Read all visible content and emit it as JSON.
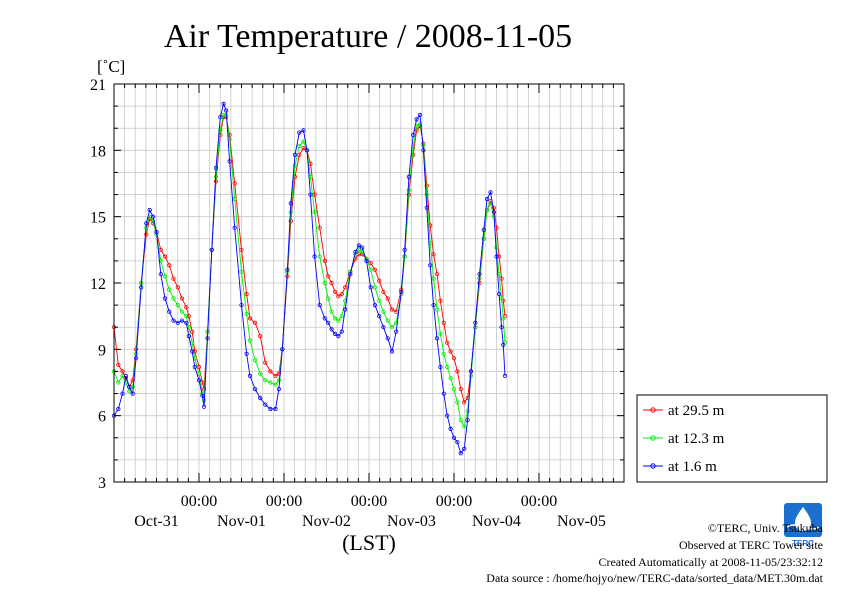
{
  "chart_data": {
    "type": "line",
    "title": "Air Temperature / 2008-11-05",
    "ylabel": "[˚C]",
    "xlabel": "(LST)",
    "ylim": [
      3,
      21
    ],
    "yticks": [
      3,
      6,
      9,
      12,
      15,
      18,
      21
    ],
    "xlim": [
      0,
      6
    ],
    "xtick_time_labels": [
      "00:00",
      "00:00",
      "00:00",
      "00:00",
      "00:00"
    ],
    "xtick_day_labels": [
      "Oct-31",
      "Nov-01",
      "Nov-02",
      "Nov-03",
      "Nov-04",
      "Nov-05"
    ],
    "grid": true,
    "legend_position": "right",
    "series": [
      {
        "name": "at 29.5 m",
        "color": "#ff0000",
        "points": [
          [
            0.0,
            10.0
          ],
          [
            0.05,
            8.3
          ],
          [
            0.1,
            8.0
          ],
          [
            0.14,
            7.7
          ],
          [
            0.18,
            7.3
          ],
          [
            0.22,
            7.6
          ],
          [
            0.26,
            9.0
          ],
          [
            0.32,
            12.0
          ],
          [
            0.38,
            14.2
          ],
          [
            0.42,
            14.9
          ],
          [
            0.46,
            14.7
          ],
          [
            0.5,
            14.3
          ],
          [
            0.55,
            13.5
          ],
          [
            0.6,
            13.2
          ],
          [
            0.65,
            12.8
          ],
          [
            0.7,
            12.2
          ],
          [
            0.75,
            11.8
          ],
          [
            0.8,
            11.3
          ],
          [
            0.85,
            10.9
          ],
          [
            0.88,
            10.5
          ],
          [
            0.92,
            9.8
          ],
          [
            0.95,
            8.9
          ],
          [
            1.0,
            8.2
          ],
          [
            1.04,
            7.5
          ],
          [
            1.06,
            7.2
          ],
          [
            1.1,
            9.8
          ],
          [
            1.15,
            13.5
          ],
          [
            1.2,
            16.6
          ],
          [
            1.25,
            18.7
          ],
          [
            1.29,
            19.5
          ],
          [
            1.32,
            19.5
          ],
          [
            1.36,
            18.7
          ],
          [
            1.42,
            16.5
          ],
          [
            1.5,
            13.5
          ],
          [
            1.56,
            11.5
          ],
          [
            1.6,
            10.4
          ],
          [
            1.66,
            10.2
          ],
          [
            1.72,
            9.6
          ],
          [
            1.78,
            8.4
          ],
          [
            1.84,
            8.0
          ],
          [
            1.9,
            7.8
          ],
          [
            1.94,
            7.9
          ],
          [
            1.98,
            9.0
          ],
          [
            2.04,
            12.3
          ],
          [
            2.08,
            14.8
          ],
          [
            2.13,
            16.8
          ],
          [
            2.18,
            17.8
          ],
          [
            2.23,
            18.1
          ],
          [
            2.27,
            18.0
          ],
          [
            2.31,
            17.4
          ],
          [
            2.36,
            16.0
          ],
          [
            2.42,
            14.5
          ],
          [
            2.48,
            13.0
          ],
          [
            2.52,
            12.3
          ],
          [
            2.56,
            12.0
          ],
          [
            2.6,
            11.6
          ],
          [
            2.64,
            11.4
          ],
          [
            2.68,
            11.5
          ],
          [
            2.72,
            11.8
          ],
          [
            2.78,
            12.5
          ],
          [
            2.84,
            13.1
          ],
          [
            2.88,
            13.3
          ],
          [
            2.92,
            13.3
          ],
          [
            2.97,
            13.1
          ],
          [
            3.02,
            12.9
          ],
          [
            3.07,
            12.6
          ],
          [
            3.12,
            12.1
          ],
          [
            3.17,
            11.6
          ],
          [
            3.22,
            11.3
          ],
          [
            3.27,
            10.8
          ],
          [
            3.32,
            10.7
          ],
          [
            3.38,
            11.7
          ],
          [
            3.42,
            13.2
          ],
          [
            3.47,
            16.0
          ],
          [
            3.52,
            17.8
          ],
          [
            3.56,
            18.9
          ],
          [
            3.6,
            19.1
          ],
          [
            3.64,
            18.3
          ],
          [
            3.68,
            16.4
          ],
          [
            3.72,
            14.6
          ],
          [
            3.76,
            13.3
          ],
          [
            3.8,
            12.4
          ],
          [
            3.84,
            11.2
          ],
          [
            3.88,
            10.2
          ],
          [
            3.92,
            9.3
          ],
          [
            3.96,
            8.9
          ],
          [
            4.0,
            8.6
          ],
          [
            4.04,
            8.0
          ],
          [
            4.08,
            7.2
          ],
          [
            4.12,
            6.6
          ],
          [
            4.16,
            6.8
          ],
          [
            4.2,
            8.0
          ],
          [
            4.25,
            10.0
          ],
          [
            4.3,
            12.0
          ],
          [
            4.35,
            14.0
          ],
          [
            4.39,
            15.3
          ],
          [
            4.43,
            15.7
          ],
          [
            4.47,
            15.4
          ],
          [
            4.5,
            14.5
          ],
          [
            4.53,
            13.2
          ],
          [
            4.56,
            12.2
          ],
          [
            4.58,
            11.2
          ],
          [
            4.6,
            10.5
          ]
        ]
      },
      {
        "name": "at 12.3 m",
        "color": "#00ee00",
        "points": [
          [
            0.0,
            8.0
          ],
          [
            0.05,
            7.5
          ],
          [
            0.1,
            7.8
          ],
          [
            0.14,
            7.5
          ],
          [
            0.18,
            7.1
          ],
          [
            0.22,
            7.3
          ],
          [
            0.26,
            8.8
          ],
          [
            0.32,
            12.0
          ],
          [
            0.38,
            14.5
          ],
          [
            0.42,
            15.0
          ],
          [
            0.46,
            14.8
          ],
          [
            0.5,
            14.2
          ],
          [
            0.55,
            13.0
          ],
          [
            0.6,
            12.3
          ],
          [
            0.65,
            11.7
          ],
          [
            0.7,
            11.3
          ],
          [
            0.75,
            11.0
          ],
          [
            0.8,
            10.7
          ],
          [
            0.85,
            10.5
          ],
          [
            0.88,
            10.0
          ],
          [
            0.92,
            9.3
          ],
          [
            0.95,
            8.6
          ],
          [
            1.0,
            7.9
          ],
          [
            1.04,
            7.0
          ],
          [
            1.06,
            6.7
          ],
          [
            1.1,
            9.8
          ],
          [
            1.15,
            13.5
          ],
          [
            1.2,
            16.8
          ],
          [
            1.25,
            18.9
          ],
          [
            1.29,
            19.6
          ],
          [
            1.32,
            19.6
          ],
          [
            1.36,
            18.5
          ],
          [
            1.42,
            15.8
          ],
          [
            1.5,
            12.5
          ],
          [
            1.56,
            10.6
          ],
          [
            1.6,
            9.4
          ],
          [
            1.66,
            8.5
          ],
          [
            1.72,
            7.9
          ],
          [
            1.78,
            7.6
          ],
          [
            1.84,
            7.5
          ],
          [
            1.9,
            7.4
          ],
          [
            1.94,
            7.6
          ],
          [
            1.98,
            9.0
          ],
          [
            2.04,
            12.5
          ],
          [
            2.08,
            15.2
          ],
          [
            2.13,
            17.3
          ],
          [
            2.18,
            18.2
          ],
          [
            2.23,
            18.4
          ],
          [
            2.27,
            18.0
          ],
          [
            2.31,
            16.8
          ],
          [
            2.36,
            15.2
          ],
          [
            2.42,
            13.2
          ],
          [
            2.48,
            12.0
          ],
          [
            2.52,
            11.3
          ],
          [
            2.56,
            10.7
          ],
          [
            2.6,
            10.4
          ],
          [
            2.64,
            10.3
          ],
          [
            2.68,
            10.5
          ],
          [
            2.72,
            11.2
          ],
          [
            2.78,
            12.5
          ],
          [
            2.84,
            13.3
          ],
          [
            2.88,
            13.5
          ],
          [
            2.92,
            13.4
          ],
          [
            2.97,
            13.1
          ],
          [
            3.02,
            12.6
          ],
          [
            3.07,
            11.8
          ],
          [
            3.12,
            11.2
          ],
          [
            3.17,
            10.7
          ],
          [
            3.22,
            10.3
          ],
          [
            3.27,
            10.0
          ],
          [
            3.32,
            10.2
          ],
          [
            3.38,
            11.5
          ],
          [
            3.42,
            13.2
          ],
          [
            3.47,
            16.2
          ],
          [
            3.52,
            18.1
          ],
          [
            3.56,
            19.1
          ],
          [
            3.6,
            19.2
          ],
          [
            3.64,
            18.2
          ],
          [
            3.68,
            16.0
          ],
          [
            3.72,
            13.8
          ],
          [
            3.76,
            12.2
          ],
          [
            3.8,
            10.8
          ],
          [
            3.84,
            9.7
          ],
          [
            3.88,
            8.8
          ],
          [
            3.92,
            8.2
          ],
          [
            3.96,
            7.7
          ],
          [
            4.0,
            7.2
          ],
          [
            4.04,
            6.6
          ],
          [
            4.08,
            5.8
          ],
          [
            4.12,
            5.5
          ],
          [
            4.16,
            6.2
          ],
          [
            4.2,
            7.8
          ],
          [
            4.25,
            10.0
          ],
          [
            4.3,
            12.2
          ],
          [
            4.35,
            14.0
          ],
          [
            4.39,
            15.3
          ],
          [
            4.43,
            15.6
          ],
          [
            4.47,
            15.0
          ],
          [
            4.5,
            13.6
          ],
          [
            4.53,
            12.4
          ],
          [
            4.56,
            11.3
          ],
          [
            4.58,
            10.4
          ],
          [
            4.6,
            9.3
          ]
        ]
      },
      {
        "name": "at 1.6 m",
        "color": "#0000ff",
        "points": [
          [
            0.0,
            6.0
          ],
          [
            0.05,
            6.3
          ],
          [
            0.1,
            7.0
          ],
          [
            0.14,
            7.8
          ],
          [
            0.18,
            7.3
          ],
          [
            0.22,
            7.0
          ],
          [
            0.26,
            8.6
          ],
          [
            0.32,
            11.8
          ],
          [
            0.38,
            14.7
          ],
          [
            0.42,
            15.3
          ],
          [
            0.46,
            15.0
          ],
          [
            0.5,
            14.3
          ],
          [
            0.55,
            12.4
          ],
          [
            0.6,
            11.3
          ],
          [
            0.65,
            10.7
          ],
          [
            0.7,
            10.3
          ],
          [
            0.75,
            10.2
          ],
          [
            0.8,
            10.3
          ],
          [
            0.85,
            10.2
          ],
          [
            0.88,
            9.6
          ],
          [
            0.92,
            8.9
          ],
          [
            0.95,
            8.2
          ],
          [
            1.0,
            7.6
          ],
          [
            1.04,
            6.9
          ],
          [
            1.06,
            6.4
          ],
          [
            1.1,
            9.5
          ],
          [
            1.15,
            13.5
          ],
          [
            1.2,
            17.2
          ],
          [
            1.25,
            19.5
          ],
          [
            1.29,
            20.1
          ],
          [
            1.32,
            19.8
          ],
          [
            1.36,
            17.5
          ],
          [
            1.42,
            14.5
          ],
          [
            1.5,
            11.0
          ],
          [
            1.56,
            8.8
          ],
          [
            1.6,
            7.8
          ],
          [
            1.66,
            7.2
          ],
          [
            1.72,
            6.8
          ],
          [
            1.78,
            6.5
          ],
          [
            1.84,
            6.3
          ],
          [
            1.9,
            6.3
          ],
          [
            1.94,
            7.2
          ],
          [
            1.98,
            9.0
          ],
          [
            2.04,
            12.6
          ],
          [
            2.08,
            15.6
          ],
          [
            2.13,
            17.8
          ],
          [
            2.18,
            18.8
          ],
          [
            2.23,
            18.9
          ],
          [
            2.27,
            18.0
          ],
          [
            2.31,
            16.0
          ],
          [
            2.36,
            13.2
          ],
          [
            2.42,
            11.0
          ],
          [
            2.48,
            10.4
          ],
          [
            2.52,
            10.2
          ],
          [
            2.56,
            9.9
          ],
          [
            2.6,
            9.7
          ],
          [
            2.64,
            9.6
          ],
          [
            2.68,
            9.8
          ],
          [
            2.72,
            10.8
          ],
          [
            2.78,
            12.4
          ],
          [
            2.84,
            13.4
          ],
          [
            2.88,
            13.7
          ],
          [
            2.92,
            13.6
          ],
          [
            2.97,
            13.0
          ],
          [
            3.02,
            11.8
          ],
          [
            3.07,
            11.0
          ],
          [
            3.12,
            10.5
          ],
          [
            3.17,
            10.0
          ],
          [
            3.22,
            9.5
          ],
          [
            3.27,
            8.9
          ],
          [
            3.32,
            9.8
          ],
          [
            3.38,
            11.6
          ],
          [
            3.42,
            13.5
          ],
          [
            3.47,
            16.8
          ],
          [
            3.52,
            18.7
          ],
          [
            3.56,
            19.4
          ],
          [
            3.6,
            19.6
          ],
          [
            3.64,
            18.0
          ],
          [
            3.68,
            15.4
          ],
          [
            3.72,
            12.8
          ],
          [
            3.76,
            11.0
          ],
          [
            3.8,
            9.5
          ],
          [
            3.84,
            8.2
          ],
          [
            3.88,
            7.0
          ],
          [
            3.92,
            6.0
          ],
          [
            3.96,
            5.4
          ],
          [
            4.0,
            5.0
          ],
          [
            4.04,
            4.8
          ],
          [
            4.08,
            4.3
          ],
          [
            4.12,
            4.5
          ],
          [
            4.16,
            5.8
          ],
          [
            4.2,
            8.0
          ],
          [
            4.25,
            10.2
          ],
          [
            4.3,
            12.4
          ],
          [
            4.35,
            14.4
          ],
          [
            4.39,
            15.8
          ],
          [
            4.43,
            16.1
          ],
          [
            4.47,
            15.2
          ],
          [
            4.5,
            13.2
          ],
          [
            4.53,
            11.5
          ],
          [
            4.56,
            10.0
          ],
          [
            4.58,
            9.2
          ],
          [
            4.6,
            7.8
          ]
        ]
      }
    ]
  },
  "footer": {
    "credit": "©TERC, Univ. Tsukuba",
    "site": "Observed at TERC Tower site",
    "created": "Created Automatically at 2008-11-05/23:32:12",
    "source": "Data source : /home/hojyo/new/TERC-data/sorted_data/MET.30m.dat"
  },
  "logo": {
    "text": "TERC",
    "color": "#1a6fd1"
  }
}
